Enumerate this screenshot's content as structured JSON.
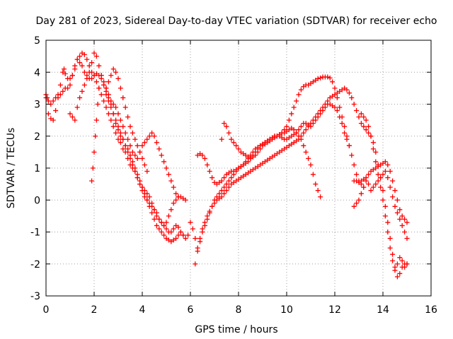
{
  "chart_data": {
    "type": "scatter",
    "title": "Day 281 of 2023, Sidereal Day-to-day VTEC variation (SDTVAR) for receiver echo",
    "xlabel": "GPS time / hours",
    "ylabel": "SDTVAR / TECUs",
    "xlim": [
      0,
      16
    ],
    "ylim": [
      -3,
      5
    ],
    "xticks": [
      "0",
      "2",
      "4",
      "6",
      "8",
      "10",
      "12",
      "14",
      "16"
    ],
    "yticks": [
      "-3",
      "-2",
      "-1",
      "0",
      "1",
      "2",
      "3",
      "4",
      "5"
    ],
    "grid": true,
    "marker": "plus",
    "color": "#ff0000",
    "series": [
      {
        "x": [
          0.0,
          0.05,
          0.1,
          0.2,
          0.3,
          0.4,
          0.5,
          0.6,
          0.7,
          0.75,
          0.8,
          0.9,
          1.0,
          1.1,
          1.2,
          1.3,
          1.4,
          1.5,
          1.6,
          1.7,
          1.8,
          1.9,
          2.0,
          2.1,
          2.2,
          2.3,
          2.4,
          2.5,
          2.6,
          2.7,
          2.8,
          2.9,
          3.0,
          3.1,
          3.2,
          3.3,
          3.4,
          3.5,
          3.6,
          3.7,
          3.8,
          3.9,
          4.0,
          4.1,
          4.2,
          4.3,
          4.4,
          4.5,
          4.6,
          4.7,
          4.8,
          4.9,
          5.0,
          5.1,
          5.2,
          5.3,
          5.4,
          5.5,
          5.6,
          5.7,
          5.8,
          5.9
        ],
        "y": [
          3.3,
          3.2,
          2.7,
          2.55,
          2.5,
          2.8,
          3.3,
          3.6,
          4.0,
          4.1,
          3.95,
          3.8,
          3.8,
          3.9,
          4.1,
          4.4,
          4.3,
          4.2,
          4.0,
          3.9,
          3.8,
          3.8,
          3.9,
          3.95,
          3.9,
          3.8,
          3.6,
          3.4,
          3.2,
          3.0,
          2.7,
          2.4,
          2.2,
          2.0,
          1.9,
          1.7,
          1.6,
          1.4,
          1.2,
          1.0,
          0.8,
          0.6,
          0.4,
          0.2,
          0.0,
          -0.2,
          -0.4,
          -0.6,
          -0.8,
          -0.9,
          -1.0,
          -1.1,
          -1.2,
          -1.25,
          -1.3,
          -1.25,
          -1.2,
          -1.1,
          -1.0,
          -1.1,
          -1.2,
          -1.1
        ]
      },
      {
        "x": [
          0.0,
          0.1,
          0.2,
          0.3,
          0.4,
          0.5,
          0.6,
          0.7,
          0.8,
          0.9,
          1.0,
          1.1,
          1.2,
          1.3,
          1.4,
          1.5,
          1.6,
          1.7,
          1.8,
          1.9,
          2.0,
          2.1,
          2.2,
          2.3,
          2.4,
          2.5,
          2.6,
          2.7,
          2.8,
          2.9,
          3.0,
          3.1,
          3.2,
          3.3,
          3.4,
          3.5,
          3.6,
          3.7,
          3.8,
          3.9,
          4.0,
          4.1,
          4.2,
          4.3,
          4.4,
          4.5,
          4.6,
          4.7,
          4.8,
          4.9,
          5.0,
          5.1,
          5.2,
          5.3,
          5.4,
          5.5,
          5.6,
          5.7
        ],
        "y": [
          3.2,
          3.1,
          3.0,
          3.1,
          3.2,
          3.2,
          3.3,
          3.4,
          3.5,
          3.5,
          3.6,
          3.9,
          4.2,
          4.4,
          4.5,
          4.6,
          4.55,
          4.4,
          4.2,
          4.0,
          3.9,
          3.7,
          3.5,
          3.3,
          3.1,
          2.9,
          2.7,
          2.5,
          2.3,
          2.1,
          1.9,
          1.8,
          1.6,
          1.5,
          1.3,
          1.1,
          1.0,
          0.9,
          0.7,
          0.5,
          0.3,
          0.1,
          0.0,
          -0.1,
          -0.2,
          -0.3,
          -0.4,
          -0.6,
          -0.7,
          -0.8,
          -0.9,
          -1.0,
          -1.0,
          -0.9,
          -0.8,
          -0.85,
          -1.0,
          -1.1
        ]
      },
      {
        "x": [
          1.0,
          1.1,
          1.2,
          1.3,
          1.4,
          1.5,
          1.6,
          1.7,
          1.8,
          1.9,
          2.0,
          2.1,
          2.2,
          2.3,
          2.4,
          2.5,
          2.6,
          2.7,
          2.8,
          2.9,
          3.0,
          3.1,
          3.2,
          3.3,
          3.4,
          3.5,
          3.6,
          3.7,
          3.8,
          3.9,
          4.0,
          4.1,
          4.2,
          4.3,
          4.4,
          4.5,
          4.6,
          4.7,
          4.8,
          4.9,
          5.0,
          5.1,
          5.2,
          5.3,
          5.4,
          5.5,
          5.6,
          5.7,
          5.8
        ],
        "y": [
          2.7,
          2.6,
          2.5,
          2.9,
          3.2,
          3.4,
          3.6,
          3.8,
          4.0,
          4.3,
          4.6,
          4.5,
          4.2,
          3.9,
          3.6,
          3.3,
          3.1,
          2.9,
          2.7,
          2.5,
          2.3,
          2.1,
          1.9,
          1.7,
          1.5,
          1.3,
          1.1,
          0.9,
          0.7,
          0.5,
          0.4,
          0.3,
          0.2,
          0.1,
          -0.1,
          -0.3,
          -0.5,
          -0.6,
          -0.7,
          -0.8,
          -0.7,
          -0.5,
          -0.3,
          -0.1,
          0.0,
          0.1,
          0.1,
          0.05,
          0.0
        ]
      },
      {
        "x": [
          1.9,
          1.95,
          2.0,
          2.05,
          2.1,
          2.15,
          2.2,
          2.3,
          2.4,
          2.5,
          2.6,
          2.7,
          2.8,
          2.9,
          3.0,
          3.1,
          3.2,
          3.3,
          3.4,
          3.5,
          3.6,
          3.7,
          3.8,
          3.9,
          4.0,
          4.1,
          4.2,
          4.3,
          4.4,
          4.5,
          4.6,
          4.7,
          4.8,
          4.9,
          5.0,
          5.1,
          5.2,
          5.3,
          5.4,
          5.5
        ],
        "y": [
          0.6,
          1.0,
          1.5,
          2.0,
          2.5,
          3.0,
          3.5,
          3.9,
          3.7,
          3.5,
          3.3,
          3.1,
          3.0,
          2.9,
          2.7,
          2.5,
          2.3,
          2.1,
          1.9,
          1.7,
          1.5,
          1.4,
          1.3,
          1.5,
          1.7,
          1.8,
          1.9,
          2.0,
          2.1,
          2.0,
          1.8,
          1.6,
          1.4,
          1.2,
          1.0,
          0.8,
          0.6,
          0.4,
          0.2,
          0.1
        ]
      },
      {
        "x": [
          2.5,
          2.6,
          2.7,
          2.8,
          2.9,
          3.0,
          3.1,
          3.2,
          3.3,
          3.4,
          3.5,
          3.6,
          3.7,
          3.8,
          3.9,
          4.0,
          4.1,
          4.2
        ],
        "y": [
          3.5,
          3.7,
          3.9,
          4.1,
          4.0,
          3.8,
          3.5,
          3.2,
          2.9,
          2.6,
          2.3,
          2.1,
          1.9,
          1.7,
          1.5,
          1.3,
          1.1,
          0.9
        ]
      },
      {
        "x": [
          6.0,
          6.1,
          6.2,
          6.3,
          6.4,
          6.5,
          6.6,
          6.7,
          6.8,
          6.9,
          7.0,
          7.1,
          7.2,
          7.3,
          7.4,
          7.5,
          7.6,
          7.7,
          7.8,
          7.9,
          8.0,
          8.1,
          8.2,
          8.3,
          8.4,
          8.5,
          8.6,
          8.7,
          8.8,
          8.9,
          9.0,
          9.1,
          9.2,
          9.3,
          9.4,
          9.5,
          9.6,
          9.7,
          9.8,
          9.9,
          10.0,
          10.1,
          10.2,
          10.3,
          10.4,
          10.5,
          10.6,
          10.7,
          10.8,
          10.9,
          11.0,
          11.1,
          11.2,
          11.3,
          11.4,
          11.5,
          11.6,
          11.7,
          11.8,
          11.9,
          12.0,
          12.1,
          12.2,
          12.3,
          12.4,
          12.5,
          12.6,
          12.7,
          12.8,
          12.9,
          13.0,
          13.1,
          13.2
        ],
        "y": [
          -0.7,
          -0.9,
          -1.2,
          -1.5,
          -1.3,
          -1.0,
          -0.8,
          -0.6,
          -0.4,
          -0.2,
          0.0,
          0.1,
          0.2,
          0.3,
          0.4,
          0.5,
          0.6,
          0.7,
          0.8,
          0.9,
          1.0,
          1.05,
          1.1,
          1.15,
          1.2,
          1.3,
          1.35,
          1.4,
          1.5,
          1.6,
          1.7,
          1.75,
          1.8,
          1.85,
          1.9,
          1.95,
          2.0,
          2.05,
          2.1,
          2.2,
          2.3,
          2.5,
          2.7,
          2.9,
          3.1,
          3.3,
          3.45,
          3.55,
          3.6,
          3.6,
          3.65,
          3.7,
          3.75,
          3.8,
          3.82,
          3.85,
          3.85,
          3.85,
          3.82,
          3.7,
          3.5,
          3.2,
          2.9,
          2.6,
          2.3,
          2.0,
          1.7,
          1.4,
          1.1,
          0.8,
          0.6,
          0.5,
          0.4
        ]
      },
      {
        "x": [
          6.3,
          6.4,
          6.5,
          6.6,
          6.7,
          6.8,
          6.9,
          7.0,
          7.1,
          7.2,
          7.3,
          7.4,
          7.5,
          7.6,
          7.7,
          7.8,
          7.9,
          8.0,
          8.1,
          8.2,
          8.3,
          8.4,
          8.5,
          8.6,
          8.7,
          8.8,
          8.9,
          9.0,
          9.1,
          9.2,
          9.3,
          9.4,
          9.5,
          9.6,
          9.7,
          9.8,
          9.9,
          10.0,
          10.1,
          10.2,
          10.3,
          10.4,
          10.5,
          10.6,
          10.7,
          10.8,
          10.9,
          11.0,
          11.1,
          11.2,
          11.3,
          11.4
        ],
        "y": [
          1.4,
          1.45,
          1.4,
          1.3,
          1.1,
          0.9,
          0.7,
          0.55,
          0.5,
          0.55,
          0.6,
          0.7,
          0.8,
          0.85,
          0.9,
          0.9,
          0.95,
          1.0,
          1.05,
          1.1,
          1.2,
          1.3,
          1.4,
          1.5,
          1.6,
          1.65,
          1.7,
          1.75,
          1.8,
          1.85,
          1.9,
          1.95,
          2.0,
          2.0,
          2.05,
          2.1,
          2.1,
          2.15,
          2.2,
          2.25,
          2.2,
          2.1,
          2.0,
          1.9,
          1.7,
          1.5,
          1.3,
          1.1,
          0.8,
          0.5,
          0.3,
          0.1
        ]
      },
      {
        "x": [
          6.2,
          6.3,
          6.4,
          6.5,
          6.6,
          6.7,
          6.8,
          6.9,
          7.0,
          7.1,
          7.2,
          7.3,
          7.4,
          7.5,
          7.6,
          7.7,
          7.8,
          7.9,
          8.0,
          8.1,
          8.2,
          8.3,
          8.4,
          8.5,
          8.6,
          8.7,
          8.8,
          8.9,
          9.0,
          9.1,
          9.2,
          9.3,
          9.4,
          9.5,
          9.6,
          9.7,
          9.8,
          9.9,
          10.0,
          10.1,
          10.2,
          10.3,
          10.4,
          10.5,
          10.6,
          10.7,
          10.8,
          10.9,
          11.0,
          11.1,
          11.2,
          11.3,
          11.4,
          11.5,
          11.6,
          11.7,
          11.8,
          11.9,
          12.0,
          12.1,
          12.2,
          12.3,
          12.4,
          12.5,
          12.6,
          12.7,
          12.8,
          12.9,
          13.0,
          13.1,
          13.2,
          13.3,
          13.4,
          13.5,
          13.6,
          13.7,
          13.8,
          13.9,
          14.0,
          14.1,
          14.2,
          14.3,
          14.4,
          14.5,
          14.6,
          14.7,
          14.8,
          14.9,
          15.0
        ],
        "y": [
          -2.0,
          -1.6,
          -1.2,
          -0.9,
          -0.7,
          -0.5,
          -0.35,
          -0.2,
          -0.1,
          0.0,
          0.05,
          0.1,
          0.2,
          0.3,
          0.4,
          0.5,
          0.55,
          0.6,
          0.65,
          0.7,
          0.75,
          0.8,
          0.85,
          0.9,
          0.95,
          1.0,
          1.05,
          1.1,
          1.15,
          1.2,
          1.25,
          1.3,
          1.35,
          1.4,
          1.45,
          1.5,
          1.55,
          1.6,
          1.65,
          1.7,
          1.75,
          1.8,
          1.85,
          1.9,
          2.0,
          2.1,
          2.2,
          2.3,
          2.4,
          2.5,
          2.6,
          2.7,
          2.8,
          2.9,
          3.0,
          3.1,
          3.2,
          3.25,
          3.3,
          3.35,
          3.4,
          3.45,
          3.5,
          3.45,
          3.35,
          3.2,
          3.0,
          2.8,
          2.6,
          2.4,
          2.3,
          2.2,
          2.1,
          2.0,
          1.8,
          1.5,
          1.1,
          0.7,
          0.3,
          -0.2,
          -0.7,
          -1.2,
          -1.7,
          -2.1,
          -2.4,
          -2.3,
          -2.1,
          -2.0,
          -2.0
        ]
      },
      {
        "x": [
          7.3,
          7.4,
          7.5,
          7.6,
          7.7,
          7.8,
          7.9,
          8.0,
          8.1,
          8.2,
          8.3,
          8.4,
          8.5,
          8.6,
          8.7,
          8.8,
          8.9,
          9.0,
          9.1,
          9.2,
          9.3,
          9.4,
          9.5,
          9.6,
          9.7,
          9.8,
          9.9,
          10.0,
          10.1,
          10.2,
          10.3,
          10.4,
          10.5,
          10.6,
          10.7,
          10.8,
          10.9,
          11.0,
          11.1,
          11.2,
          11.3,
          11.4,
          11.5,
          11.6,
          11.7,
          11.8,
          11.9,
          12.0,
          12.1,
          12.2,
          12.3,
          12.4,
          12.5,
          12.6
        ],
        "y": [
          1.9,
          2.4,
          2.3,
          2.1,
          1.9,
          1.8,
          1.7,
          1.6,
          1.5,
          1.45,
          1.4,
          1.35,
          1.3,
          1.4,
          1.5,
          1.6,
          1.7,
          1.75,
          1.8,
          1.85,
          1.9,
          1.95,
          2.0,
          2.0,
          2.0,
          1.95,
          1.9,
          1.9,
          1.95,
          2.0,
          2.05,
          2.1,
          2.2,
          2.3,
          2.4,
          2.4,
          2.35,
          2.3,
          2.4,
          2.5,
          2.6,
          2.7,
          2.8,
          2.9,
          3.0,
          3.0,
          2.95,
          2.9,
          2.8,
          2.6,
          2.4,
          2.1,
          1.9,
          1.7
        ]
      },
      {
        "x": [
          12.8,
          12.9,
          13.0,
          13.1,
          13.2,
          13.3,
          13.4,
          13.5,
          13.6,
          13.7,
          13.8,
          13.9,
          14.0,
          14.1,
          14.2,
          14.3,
          14.4,
          14.5,
          14.6,
          14.7,
          14.8,
          14.9,
          15.0
        ],
        "y": [
          -0.2,
          -0.1,
          0.0,
          0.2,
          0.4,
          0.6,
          0.8,
          0.9,
          0.95,
          1.0,
          1.05,
          1.1,
          1.15,
          1.2,
          1.1,
          0.9,
          0.6,
          0.3,
          0.0,
          -0.3,
          -0.5,
          -0.6,
          -0.7
        ]
      },
      {
        "x": [
          12.8,
          12.9,
          13.0,
          13.1,
          13.2,
          13.3,
          13.4,
          13.5,
          13.6,
          13.7,
          13.8,
          13.9,
          14.0,
          14.1,
          14.2,
          14.3,
          14.4,
          14.5,
          14.6,
          14.7,
          14.8,
          14.9,
          15.0
        ],
        "y": [
          0.6,
          0.6,
          0.55,
          0.6,
          0.65,
          0.7,
          0.5,
          0.3,
          0.4,
          0.5,
          0.6,
          0.7,
          0.8,
          0.9,
          0.7,
          0.4,
          0.1,
          -0.2,
          -0.4,
          -0.6,
          -0.8,
          -1.0,
          -1.2
        ]
      },
      {
        "x": [
          13.1,
          13.2,
          13.3,
          13.4,
          13.5,
          13.6,
          13.7,
          13.8,
          13.9,
          14.0,
          14.1,
          14.2,
          14.3,
          14.4,
          14.5,
          14.6,
          14.7,
          14.8,
          14.9,
          15.0
        ],
        "y": [
          2.7,
          2.6,
          2.5,
          2.3,
          2.0,
          1.6,
          1.2,
          0.8,
          0.4,
          0.0,
          -0.5,
          -1.0,
          -1.5,
          -1.9,
          -2.2,
          -2.0,
          -1.8,
          -1.9,
          -2.1,
          -2.0
        ]
      }
    ]
  }
}
